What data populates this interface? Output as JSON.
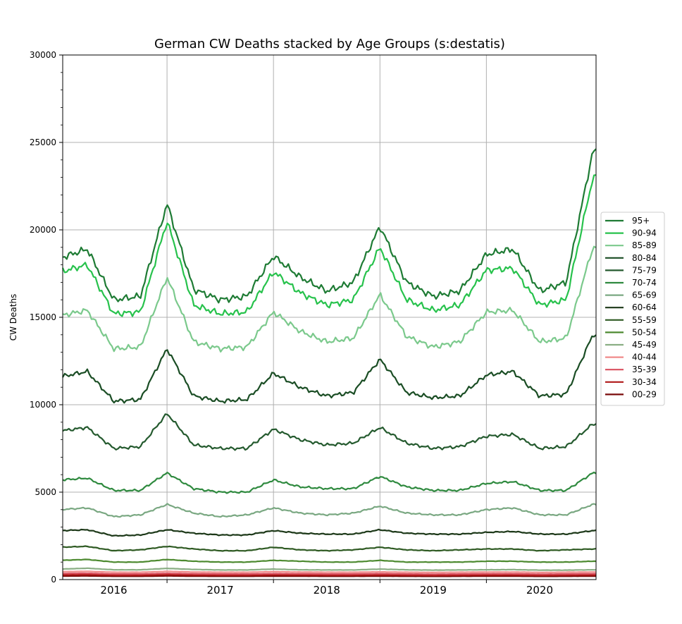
{
  "chart_data": {
    "type": "line",
    "title": "German CW Deaths stacked by Age Groups (s:destatis)",
    "xlabel": "",
    "ylabel": "CW Deaths",
    "ylim": [
      0,
      30000
    ],
    "xlim": [
      2015.52,
      2020.53
    ],
    "yticks": [
      0,
      5000,
      10000,
      15000,
      20000,
      25000,
      30000
    ],
    "xticks": [
      2016,
      2017,
      2018,
      2019,
      2020
    ],
    "x_gridlines": [
      2016.5,
      2017.5,
      2018.5,
      2019.5
    ],
    "grid": true,
    "legend_position": "right",
    "years": [
      2015.5,
      2015.75,
      2016.0,
      2016.25,
      2016.5,
      2016.75,
      2017.0,
      2017.25,
      2017.5,
      2017.75,
      2018.0,
      2018.25,
      2018.5,
      2018.75,
      2019.0,
      2019.25,
      2019.5,
      2019.75,
      2020.0,
      2020.25,
      2020.5
    ],
    "series": [
      {
        "name": "95+",
        "color": "#1e7b34",
        "values": [
          18400,
          18900,
          16000,
          16200,
          21500,
          16600,
          16000,
          16200,
          18500,
          17300,
          16500,
          17000,
          20200,
          17000,
          16200,
          16500,
          18600,
          18900,
          16500,
          17000,
          24500
        ]
      },
      {
        "name": "90-94",
        "color": "#27c24c",
        "values": [
          17600,
          18000,
          15200,
          15300,
          20500,
          15700,
          15200,
          15300,
          17600,
          16400,
          15700,
          16000,
          19000,
          16000,
          15400,
          15700,
          17700,
          17800,
          15700,
          16000,
          23000
        ]
      },
      {
        "name": "85-89",
        "color": "#7bc98c",
        "values": [
          15100,
          15400,
          13200,
          13300,
          17300,
          13600,
          13200,
          13300,
          15300,
          14200,
          13600,
          13800,
          16300,
          13900,
          13300,
          13600,
          15300,
          15400,
          13600,
          13800,
          19000
        ]
      },
      {
        "name": "80-84",
        "color": "#1a4d24",
        "values": [
          11600,
          11900,
          10200,
          10300,
          13200,
          10500,
          10200,
          10300,
          11800,
          11000,
          10500,
          10700,
          12600,
          10700,
          10400,
          10500,
          11700,
          11900,
          10500,
          10600,
          14000
        ]
      },
      {
        "name": "75-79",
        "color": "#245a2e",
        "values": [
          8500,
          8700,
          7500,
          7600,
          9500,
          7700,
          7500,
          7500,
          8600,
          8000,
          7700,
          7800,
          8700,
          7800,
          7500,
          7600,
          8200,
          8300,
          7500,
          7600,
          8900
        ]
      },
      {
        "name": "70-74",
        "color": "#2f8a3f",
        "values": [
          5700,
          5800,
          5100,
          5100,
          6100,
          5200,
          5000,
          5000,
          5700,
          5300,
          5200,
          5200,
          5900,
          5300,
          5100,
          5100,
          5500,
          5600,
          5100,
          5100,
          6100
        ]
      },
      {
        "name": "65-69",
        "color": "#7aa882",
        "values": [
          4000,
          4100,
          3600,
          3700,
          4300,
          3800,
          3600,
          3700,
          4100,
          3800,
          3700,
          3800,
          4200,
          3800,
          3700,
          3700,
          4000,
          4100,
          3700,
          3700,
          4300
        ]
      },
      {
        "name": "60-64",
        "color": "#1c3818",
        "values": [
          2800,
          2850,
          2500,
          2550,
          2850,
          2650,
          2550,
          2550,
          2800,
          2650,
          2600,
          2600,
          2850,
          2650,
          2600,
          2600,
          2700,
          2750,
          2600,
          2600,
          2800
        ]
      },
      {
        "name": "55-59",
        "color": "#2e5a22",
        "values": [
          1850,
          1900,
          1650,
          1700,
          1900,
          1750,
          1650,
          1650,
          1850,
          1700,
          1650,
          1700,
          1850,
          1700,
          1650,
          1700,
          1750,
          1750,
          1650,
          1700,
          1750
        ]
      },
      {
        "name": "50-54",
        "color": "#4d8a30",
        "values": [
          1100,
          1150,
          1000,
          1000,
          1150,
          1050,
          1000,
          1000,
          1100,
          1050,
          1000,
          1000,
          1100,
          1000,
          1000,
          1000,
          1050,
          1050,
          1000,
          1000,
          1050
        ]
      },
      {
        "name": "45-49",
        "color": "#8aae84",
        "values": [
          600,
          650,
          560,
          560,
          640,
          580,
          550,
          550,
          600,
          560,
          550,
          550,
          600,
          560,
          540,
          550,
          560,
          570,
          540,
          540,
          560
        ]
      },
      {
        "name": "40-44",
        "color": "#f08a8a",
        "values": [
          450,
          470,
          420,
          420,
          470,
          430,
          420,
          420,
          450,
          430,
          420,
          420,
          440,
          420,
          410,
          420,
          430,
          430,
          410,
          420,
          430
        ]
      },
      {
        "name": "35-39",
        "color": "#d9505f",
        "values": [
          350,
          360,
          320,
          320,
          360,
          330,
          320,
          320,
          340,
          330,
          320,
          320,
          340,
          320,
          310,
          320,
          330,
          330,
          310,
          320,
          330
        ]
      },
      {
        "name": "30-34",
        "color": "#b01818",
        "values": [
          270,
          280,
          250,
          250,
          280,
          260,
          250,
          250,
          270,
          260,
          250,
          250,
          260,
          250,
          240,
          250,
          260,
          260,
          240,
          250,
          260
        ]
      },
      {
        "name": "00-29",
        "color": "#7a0a0a",
        "values": [
          200,
          210,
          190,
          190,
          210,
          195,
          190,
          190,
          200,
          195,
          190,
          190,
          195,
          190,
          185,
          190,
          195,
          195,
          185,
          190,
          195
        ]
      }
    ]
  }
}
